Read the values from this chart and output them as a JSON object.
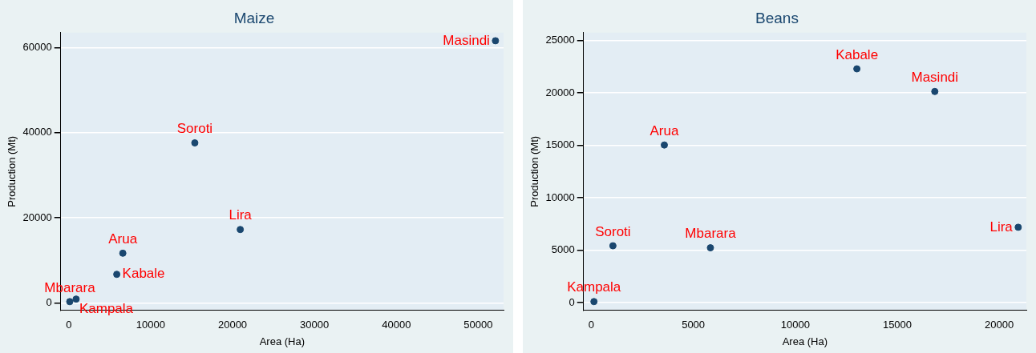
{
  "chart_data": [
    {
      "type": "scatter",
      "title": "Maize",
      "xlabel": "Area (Ha)",
      "ylabel": "Production (Mt)",
      "xlim": [
        -980,
        53090
      ],
      "ylim": [
        -1760,
        63500
      ],
      "xticks": [
        0,
        10000,
        20000,
        30000,
        40000,
        50000
      ],
      "yticks": [
        0,
        20000,
        40000,
        60000
      ],
      "grid": "y",
      "legend": false,
      "marker": "circle",
      "series": [
        {
          "color": "#1a476f",
          "x": [
            52100,
            15390,
            20940,
            6600,
            5860,
            120,
            900
          ],
          "values": [
            61600,
            37600,
            17250,
            11680,
            6720,
            300,
            900
          ]
        }
      ],
      "annotations": [
        {
          "text": "Masindi",
          "x": 52100,
          "y": 61600
        },
        {
          "text": "Soroti",
          "x": 15390,
          "y": 37600
        },
        {
          "text": "Lira",
          "x": 20940,
          "y": 17250
        },
        {
          "text": "Arua",
          "x": 6600,
          "y": 11680
        },
        {
          "text": "Kabale",
          "x": 5860,
          "y": 6720
        },
        {
          "text": "Mbarara",
          "x": 120,
          "y": 300
        },
        {
          "text": "Kampala",
          "x": 900,
          "y": 900
        }
      ]
    },
    {
      "type": "scatter",
      "title": "Beans",
      "xlabel": "Area (Ha)",
      "ylabel": "Production (Mt)",
      "xlim": [
        -380,
        21330
      ],
      "ylim": [
        -740,
        25740
      ],
      "xticks": [
        0,
        5000,
        10000,
        15000,
        20000
      ],
      "yticks": [
        0,
        5000,
        10000,
        15000,
        20000,
        25000
      ],
      "grid": "y",
      "legend": false,
      "marker": "circle",
      "series": [
        {
          "color": "#1a476f",
          "x": [
            13020,
            16840,
            3580,
            20930,
            1060,
            5840,
            130
          ],
          "values": [
            22290,
            20130,
            15030,
            7190,
            5420,
            5230,
            100
          ]
        }
      ],
      "annotations": [
        {
          "text": "Kabale",
          "x": 13020,
          "y": 22290
        },
        {
          "text": "Masindi",
          "x": 16840,
          "y": 20130
        },
        {
          "text": "Arua",
          "x": 3580,
          "y": 15030
        },
        {
          "text": "Lira",
          "x": 20930,
          "y": 7190
        },
        {
          "text": "Soroti",
          "x": 1060,
          "y": 5420
        },
        {
          "text": "Mbarara",
          "x": 5840,
          "y": 5230
        },
        {
          "text": "Kampala",
          "x": 130,
          "y": 100
        }
      ]
    }
  ]
}
